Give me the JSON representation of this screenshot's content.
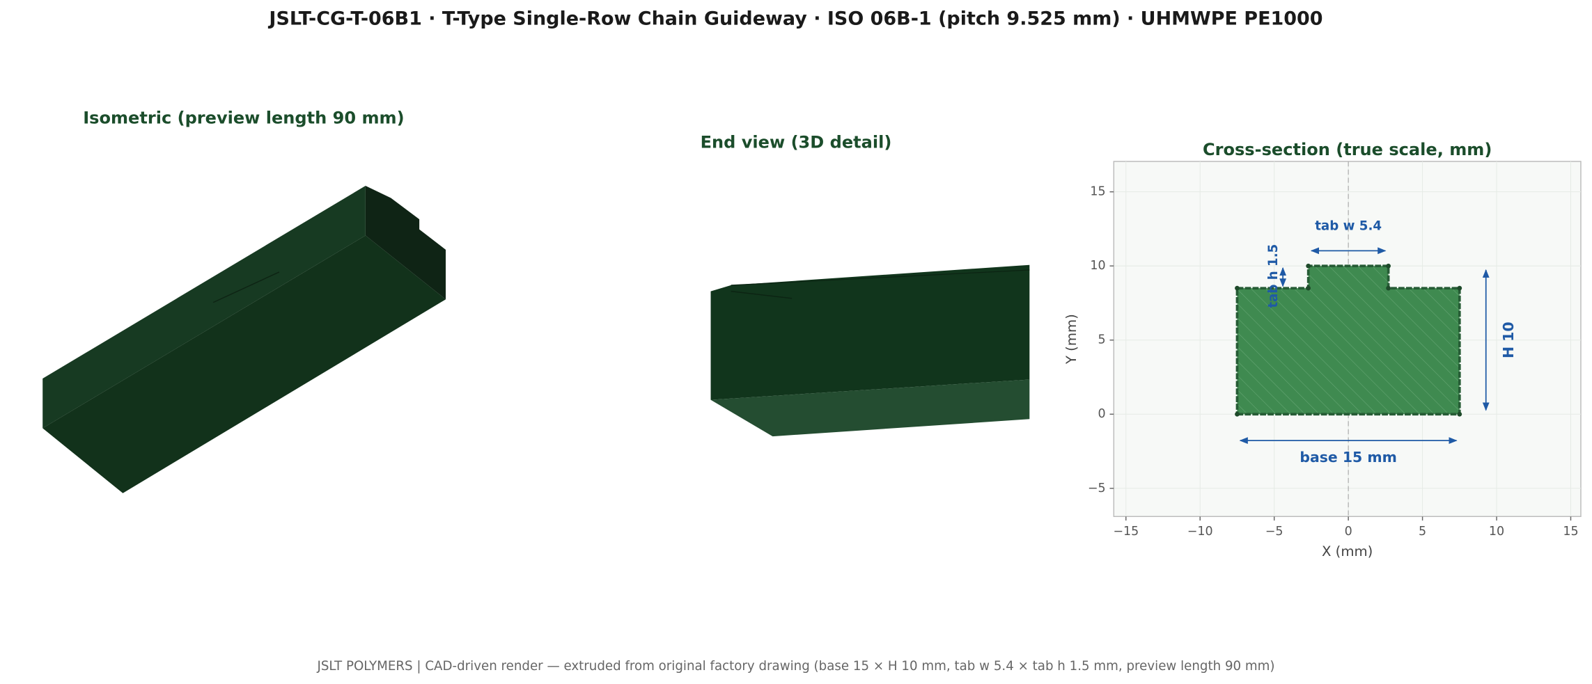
{
  "title": "JSLT-CG-T-06B1   ·   T-Type Single-Row Chain Guideway   ·   ISO 06B-1 (pitch 9.525 mm)   ·   UHMWPE PE1000",
  "isometric": {
    "title": "Isometric  (preview length 90 mm)"
  },
  "end_view": {
    "title": "End view (3D detail)"
  },
  "footer": "JSLT POLYMERS  |  CAD-driven render — extruded from original factory drawing  (base 15 × H 10 mm, tab w 5.4 × tab h 1.5 mm, preview length 90 mm)",
  "chart_data": {
    "type": "polygon",
    "title": "Cross-section (true scale, mm)",
    "x_label": "X  (mm)",
    "y_label": "Y  (mm)",
    "x": [
      -7.5,
      7.5,
      7.5,
      2.7,
      2.7,
      -2.7,
      -2.7,
      -7.5
    ],
    "y": [
      0,
      0,
      8.5,
      8.5,
      10,
      10,
      8.5,
      8.5
    ],
    "color": "#3f8a50",
    "edge_color": "#265c35",
    "xlim": [
      -15.82,
      15.68
    ],
    "ylim": [
      -6.9,
      17.05
    ],
    "xticks": [
      {
        "value": -15,
        "label": "−15"
      },
      {
        "value": -10,
        "label": "−10"
      },
      {
        "value": -5,
        "label": "−5"
      },
      0,
      5,
      10,
      15
    ],
    "yticks": [
      {
        "value": -5,
        "label": "−5"
      },
      0,
      5,
      10,
      15
    ],
    "grid": true,
    "annotations": [
      "tab w 5.4",
      "tab h 1.5",
      "H 10",
      "base 15 mm"
    ]
  }
}
